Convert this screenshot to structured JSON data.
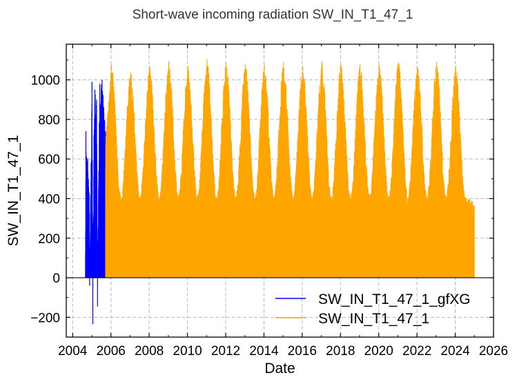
{
  "chart_data": {
    "type": "line",
    "title": "Short-wave incoming radiation SW_IN_T1_47_1",
    "xlabel": "Date",
    "ylabel": "SW_IN_T1_47_1",
    "xlim": [
      "2003-09-01",
      "2026-01-01"
    ],
    "ylim": [
      -300,
      1180
    ],
    "x_ticks": [
      "2004",
      "2006",
      "2008",
      "2010",
      "2012",
      "2014",
      "2016",
      "2018",
      "2020",
      "2022",
      "2024",
      "2026"
    ],
    "y_ticks": [
      -200,
      0,
      200,
      400,
      600,
      800,
      1000
    ],
    "grid": true,
    "legend_position": "lower-right",
    "series": [
      {
        "name": "SW_IN_T1_47_1_gfXG",
        "color": "#0000ff",
        "date_range": [
          "2004-09-01",
          "2005-09-20"
        ],
        "points": [
          {
            "x": "2004-09-01",
            "y": 0
          },
          {
            "x": "2004-09-10",
            "y": 740
          },
          {
            "x": "2004-09-25",
            "y": 610
          },
          {
            "x": "2004-10-15",
            "y": 600
          },
          {
            "x": "2004-11-10",
            "y": 430
          },
          {
            "x": "2004-11-20",
            "y": -40
          },
          {
            "x": "2004-12-10",
            "y": 420
          },
          {
            "x": "2005-01-05",
            "y": 990
          },
          {
            "x": "2005-01-20",
            "y": -235
          },
          {
            "x": "2005-02-10",
            "y": 720
          },
          {
            "x": "2005-03-01",
            "y": 950
          },
          {
            "x": "2005-04-01",
            "y": 900
          },
          {
            "x": "2005-04-20",
            "y": -145
          },
          {
            "x": "2005-06-01",
            "y": 980
          },
          {
            "x": "2005-07-15",
            "y": 1000
          },
          {
            "x": "2005-09-20",
            "y": 740
          }
        ],
        "min": -235,
        "max": 1000
      },
      {
        "name": "SW_IN_T1_47_1",
        "color": "#ffa500",
        "date_range": [
          "2005-09-20",
          "2024-12-31"
        ],
        "annual_peaks": [
          {
            "x": "2006-01-10",
            "y": 1080
          },
          {
            "x": "2007-01-10",
            "y": 1040
          },
          {
            "x": "2008-01-10",
            "y": 1070
          },
          {
            "x": "2009-01-10",
            "y": 1095
          },
          {
            "x": "2010-01-10",
            "y": 1070
          },
          {
            "x": "2011-01-10",
            "y": 1105
          },
          {
            "x": "2012-01-10",
            "y": 1085
          },
          {
            "x": "2013-01-10",
            "y": 1080
          },
          {
            "x": "2014-01-10",
            "y": 1080
          },
          {
            "x": "2015-01-10",
            "y": 1090
          },
          {
            "x": "2016-01-10",
            "y": 1070
          },
          {
            "x": "2017-01-10",
            "y": 1095
          },
          {
            "x": "2018-01-10",
            "y": 1080
          },
          {
            "x": "2019-01-10",
            "y": 1080
          },
          {
            "x": "2020-01-10",
            "y": 1080
          },
          {
            "x": "2021-01-10",
            "y": 1090
          },
          {
            "x": "2022-01-10",
            "y": 1070
          },
          {
            "x": "2023-01-10",
            "y": 1090
          },
          {
            "x": "2024-01-10",
            "y": 1070
          }
        ],
        "annual_troughs_of_daily_max": [
          {
            "x": "2006-07-10",
            "y": 420
          },
          {
            "x": "2007-07-10",
            "y": 420
          },
          {
            "x": "2008-07-10",
            "y": 420
          },
          {
            "x": "2009-07-10",
            "y": 420
          },
          {
            "x": "2010-07-10",
            "y": 420
          },
          {
            "x": "2011-07-10",
            "y": 420
          },
          {
            "x": "2012-07-10",
            "y": 420
          },
          {
            "x": "2013-07-10",
            "y": 420
          },
          {
            "x": "2014-07-10",
            "y": 420
          },
          {
            "x": "2015-07-10",
            "y": 420
          },
          {
            "x": "2016-07-10",
            "y": 420
          },
          {
            "x": "2017-07-10",
            "y": 420
          },
          {
            "x": "2018-07-10",
            "y": 420
          },
          {
            "x": "2019-07-10",
            "y": 420
          },
          {
            "x": "2020-07-10",
            "y": 420
          },
          {
            "x": "2021-07-10",
            "y": 420
          },
          {
            "x": "2022-07-10",
            "y": 420
          },
          {
            "x": "2023-07-10",
            "y": 420
          },
          {
            "x": "2024-07-10",
            "y": 420
          }
        ],
        "min": 0,
        "max": 1105
      }
    ]
  }
}
